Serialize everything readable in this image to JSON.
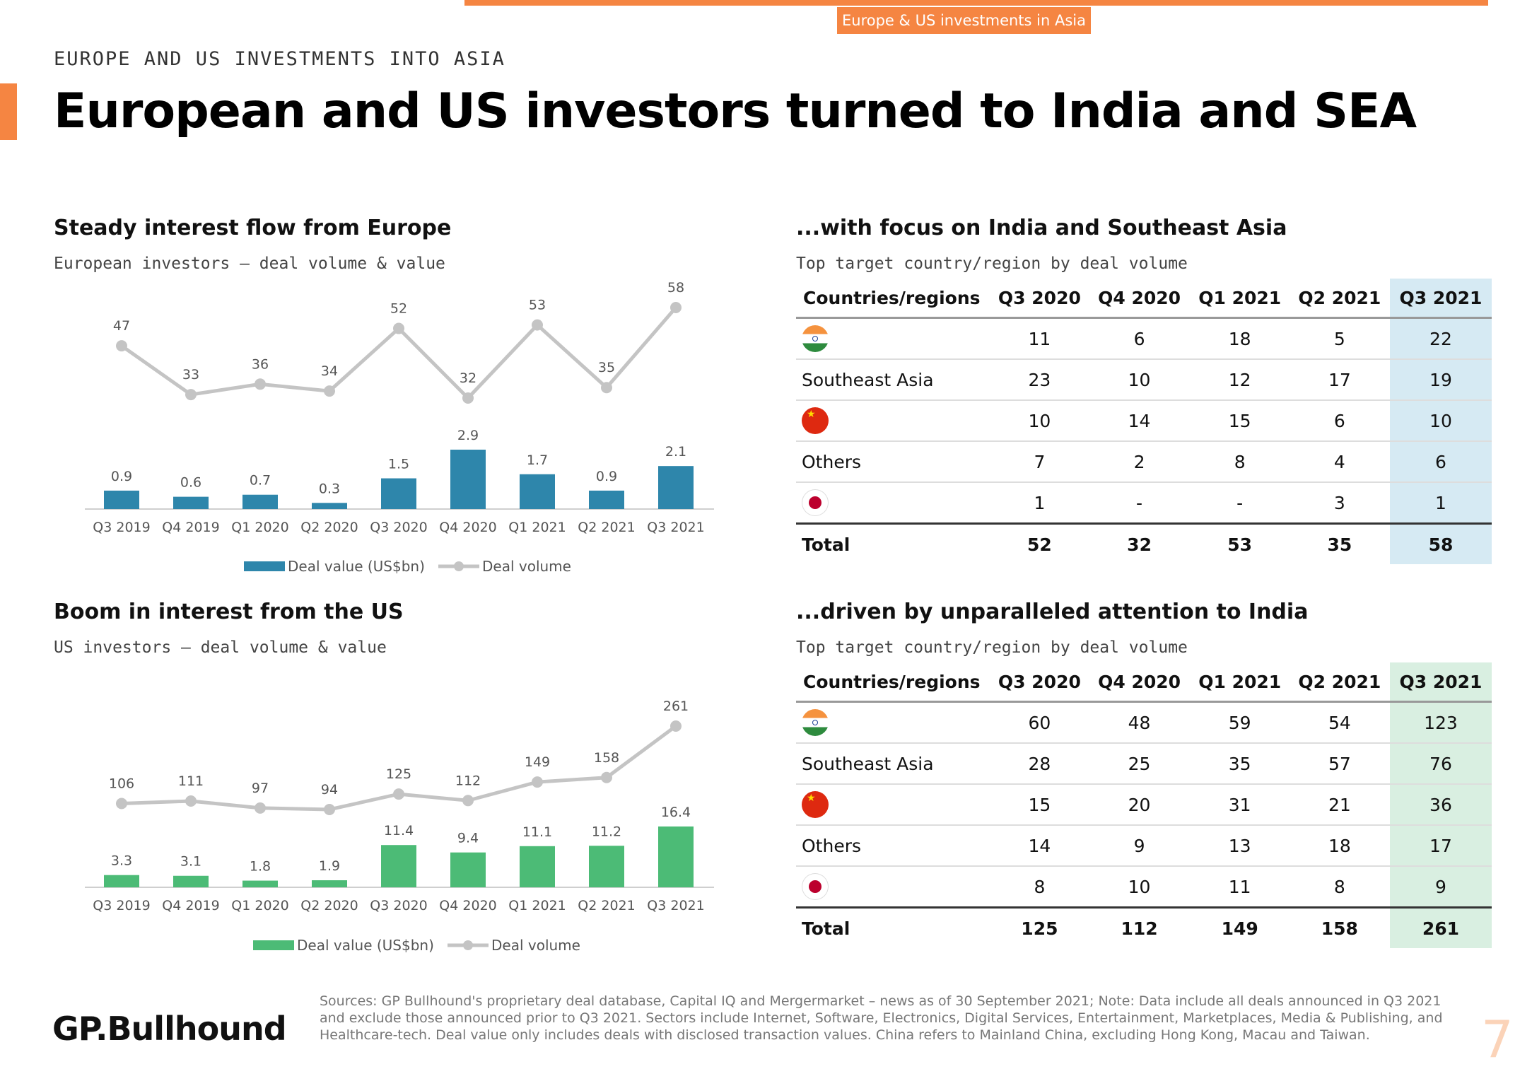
{
  "header": {
    "tag": "Europe & US investments in Asia",
    "eyebrow": "EUROPE AND US INVESTMENTS INTO ASIA",
    "title": "European and US investors turned to India and SEA"
  },
  "colors": {
    "accent": "#f58542",
    "europe_bar": "#2e86ab",
    "us_bar": "#4cbb76",
    "line": "#c4c4c4",
    "hl_blue": "#d6eaf3",
    "hl_green": "#d9efe1"
  },
  "europe": {
    "title": "Steady interest flow from Europe",
    "subtitle": "European investors – deal volume & value"
  },
  "us": {
    "title": "Boom in interest from the US",
    "subtitle": "US investors – deal volume & value"
  },
  "table_europe": {
    "title": "...with focus on India and Southeast Asia",
    "subtitle": "Top target country/region by deal volume"
  },
  "table_us": {
    "title": "...driven by unparalleled attention to India",
    "subtitle": "Top target country/region by deal volume"
  },
  "chart_data": [
    {
      "type": "bar",
      "title": "European investors – deal volume & value",
      "categories": [
        "Q3 2019",
        "Q4 2019",
        "Q1 2020",
        "Q2 2020",
        "Q3 2020",
        "Q4 2020",
        "Q1 2021",
        "Q2 2021",
        "Q3 2021"
      ],
      "series": [
        {
          "name": "Deal value (US$bn)",
          "type": "bar",
          "values": [
            0.9,
            0.6,
            0.7,
            0.3,
            1.5,
            2.9,
            1.7,
            0.9,
            2.1
          ],
          "labels": [
            "0.9",
            "0.6",
            "0.7",
            "0.3",
            "1.5",
            "2.9",
            "1.7",
            "0.9",
            "2.1"
          ]
        },
        {
          "name": "Deal volume",
          "type": "line",
          "values": [
            47,
            33,
            36,
            34,
            52,
            32,
            53,
            35,
            58
          ]
        }
      ],
      "legend": "bottom-center"
    },
    {
      "type": "bar",
      "title": "US investors – deal volume & value",
      "categories": [
        "Q3 2019",
        "Q4 2019",
        "Q1 2020",
        "Q2 2020",
        "Q3 2020",
        "Q4 2020",
        "Q1 2021",
        "Q2 2021",
        "Q3 2021"
      ],
      "series": [
        {
          "name": "Deal value (US$bn)",
          "type": "bar",
          "values": [
            3.3,
            3.1,
            1.8,
            1.9,
            11.4,
            9.4,
            11.1,
            11.2,
            16.4
          ],
          "labels": [
            "3.3",
            "3.1",
            "1.8",
            "1.9",
            "11.4",
            "9.4",
            "11.1",
            "11.2",
            "16.4"
          ]
        },
        {
          "name": "Deal volume",
          "type": "line",
          "values": [
            106,
            111,
            97,
            94,
            125,
            112,
            149,
            158,
            261
          ]
        }
      ],
      "legend": "bottom-center"
    },
    {
      "type": "table",
      "title": "Top target country/region by deal volume (Europe)",
      "columns": [
        "Countries/regions",
        "Q3 2020",
        "Q4 2020",
        "Q1 2021",
        "Q2 2021",
        "Q3 2021"
      ],
      "rows": [
        {
          "flag": "india-flag-icon",
          "name": "",
          "values": [
            "11",
            "6",
            "18",
            "5",
            "22"
          ]
        },
        {
          "flag": "",
          "name": "Southeast Asia",
          "values": [
            "23",
            "10",
            "12",
            "17",
            "19"
          ]
        },
        {
          "flag": "china-flag-icon",
          "name": "",
          "values": [
            "10",
            "14",
            "15",
            "6",
            "10"
          ]
        },
        {
          "flag": "",
          "name": "Others",
          "values": [
            "7",
            "2",
            "8",
            "4",
            "6"
          ]
        },
        {
          "flag": "japan-flag-icon",
          "name": "",
          "values": [
            "1",
            "-",
            "-",
            "3",
            "1"
          ]
        }
      ],
      "total": {
        "name": "Total",
        "values": [
          "52",
          "32",
          "53",
          "35",
          "58"
        ]
      }
    },
    {
      "type": "table",
      "title": "Top target country/region by deal volume (US)",
      "columns": [
        "Countries/regions",
        "Q3 2020",
        "Q4 2020",
        "Q1 2021",
        "Q2 2021",
        "Q3 2021"
      ],
      "rows": [
        {
          "flag": "india-flag-icon",
          "name": "",
          "values": [
            "60",
            "48",
            "59",
            "54",
            "123"
          ]
        },
        {
          "flag": "",
          "name": "Southeast Asia",
          "values": [
            "28",
            "25",
            "35",
            "57",
            "76"
          ]
        },
        {
          "flag": "china-flag-icon",
          "name": "",
          "values": [
            "15",
            "20",
            "31",
            "21",
            "36"
          ]
        },
        {
          "flag": "",
          "name": "Others",
          "values": [
            "14",
            "9",
            "13",
            "18",
            "17"
          ]
        },
        {
          "flag": "japan-flag-icon",
          "name": "",
          "values": [
            "8",
            "10",
            "11",
            "8",
            "9"
          ]
        }
      ],
      "total": {
        "name": "Total",
        "values": [
          "125",
          "112",
          "149",
          "158",
          "261"
        ]
      }
    }
  ],
  "footer": {
    "logo": "GP.Bullhound",
    "sources": "Sources: GP Bullhound's proprietary deal database, Capital IQ and Mergermarket – news as of 30 September 2021; Note: Data include all deals announced in Q3 2021 and exclude those announced prior to Q3 2021. Sectors include Internet, Software, Electronics, Digital Services, Entertainment, Marketplaces, Media & Publishing, and Healthcare-tech. Deal value only includes deals with disclosed transaction values. China refers to Mainland China, excluding Hong Kong, Macau and Taiwan.",
    "page": "7"
  }
}
